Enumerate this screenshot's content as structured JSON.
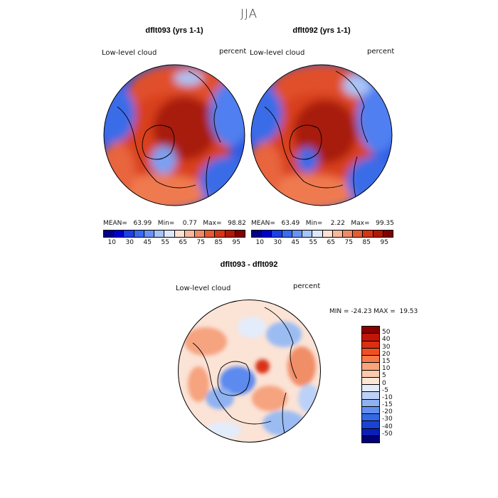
{
  "title": "JJA",
  "panels": [
    {
      "title": "dflt093 (yrs 1-1)",
      "variable": "Low-level cloud",
      "units": "percent",
      "stats": "MEAN=   63.99   Min=    0.77   Max=   98.82"
    },
    {
      "title": "dflt092 (yrs 1-1)",
      "variable": "Low-level cloud",
      "units": "percent",
      "stats": "MEAN=   63.49   Min=    2.22   Max=   99.35"
    }
  ],
  "colorbar_top": {
    "colors": [
      "#00008b",
      "#0000cd",
      "#1e40e6",
      "#3a6bf0",
      "#6a93f5",
      "#a6c4f8",
      "#dde8fa",
      "#fde2d2",
      "#f8b89a",
      "#f08a66",
      "#e65a35",
      "#d43515",
      "#b01a05",
      "#800000"
    ],
    "tick_labels": [
      "10",
      "30",
      "45",
      "55",
      "65",
      "75",
      "85",
      "95"
    ]
  },
  "diff": {
    "title": "dflt093 - dflt092",
    "variable": "Low-level cloud",
    "units": "percent",
    "stats": "MIN = -24.23 MAX =  19.53",
    "colors": [
      "#8b0000",
      "#c0160a",
      "#d93013",
      "#f0501f",
      "#f57a4a",
      "#f9a47c",
      "#fcc9ad",
      "#fde6d6",
      "#e3ecfb",
      "#bcd1f7",
      "#8fb2f2",
      "#6390ee",
      "#3468e6",
      "#1a43d6",
      "#0a1fb8",
      "#00007a"
    ],
    "tick_labels": [
      "50",
      "40",
      "30",
      "20",
      "15",
      "10",
      "5",
      "0",
      "-5",
      "-10",
      "-15",
      "-20",
      "-30",
      "-40",
      "-50"
    ]
  }
}
